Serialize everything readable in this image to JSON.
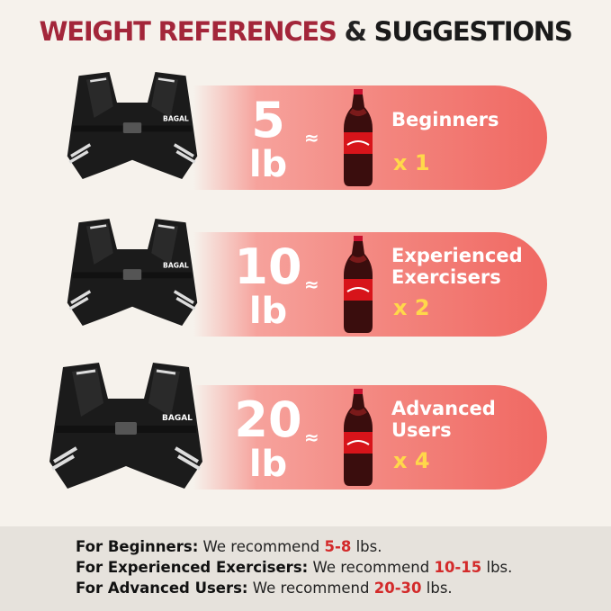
{
  "title": {
    "part1": "WEIGHT REFERENCES",
    "part2": "&",
    "part3": "SUGGESTIONS"
  },
  "brand": "BAGAL",
  "tiers": [
    {
      "weight": "5",
      "unit": "lb",
      "approx": "≈",
      "label_lines": [
        "Beginners"
      ],
      "multiplier": "x 1"
    },
    {
      "weight": "10",
      "unit": "lb",
      "approx": "≈",
      "label_lines": [
        "Experienced",
        "Exercisers"
      ],
      "multiplier": "x 2"
    },
    {
      "weight": "20",
      "unit": "lb",
      "approx": "≈",
      "label_lines": [
        "Advanced",
        "Users"
      ],
      "multiplier": "x 4"
    }
  ],
  "recommendations": [
    {
      "label": "For Beginners:",
      "text": "We recommend",
      "value": "5-8",
      "unit": "lbs."
    },
    {
      "label": "For Experienced Exercisers:",
      "text": "We recommend",
      "value": "10-15",
      "unit": "lbs."
    },
    {
      "label": "For Advanced Users:",
      "text": "We recommend",
      "value": "20-30",
      "unit": "lbs."
    }
  ],
  "colors": {
    "title_red": "#a3263a",
    "accent_red": "#d32a2a",
    "pill_coral": "#f06862",
    "multiplier_yellow": "#ffd84a"
  }
}
